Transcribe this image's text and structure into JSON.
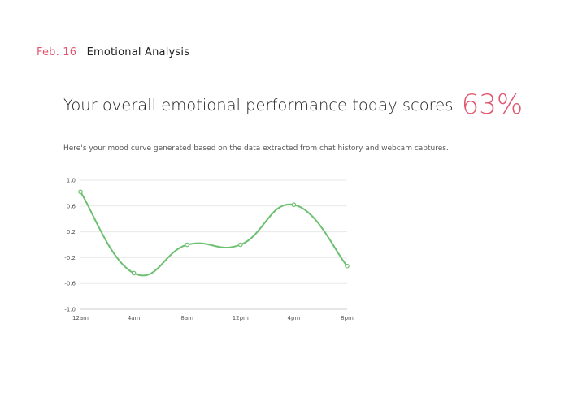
{
  "header": {
    "date": "Feb. 16",
    "section": "Emotional Analysis"
  },
  "headline": {
    "text": "Your overall emotional performance today scores",
    "score": "63%"
  },
  "description": "Here's your mood curve generated based on the data extracted from chat history and webcam captures.",
  "colors": {
    "accent": "#e0576f",
    "line": "#6cc070",
    "grid": "#e8e8e8",
    "axis": "#cccccc"
  },
  "chart_data": {
    "type": "line",
    "title": "",
    "xlabel": "",
    "ylabel": "",
    "categories": [
      "12am",
      "4am",
      "8am",
      "12pm",
      "4pm",
      "8pm"
    ],
    "ylim": [
      -1.0,
      1.0
    ],
    "yticks": [
      "1.0",
      "0.6",
      "0.2",
      "-0.2",
      "-0.6",
      "-1.0"
    ],
    "ytick_values": [
      1.0,
      0.6,
      0.2,
      -0.2,
      -0.6,
      -1.0
    ],
    "grid": true,
    "legend": "none",
    "series": [
      {
        "x": [
          0,
          2,
          4,
          6,
          8,
          10
        ],
        "values": [
          0.82,
          -0.44,
          0.0,
          0.0,
          0.62,
          -0.33
        ]
      }
    ]
  }
}
